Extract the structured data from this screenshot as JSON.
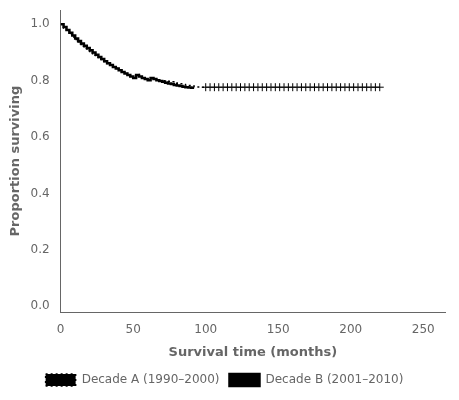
{
  "chart_data": {
    "type": "line",
    "title": "",
    "xlabel": "Survival time (months)",
    "ylabel": "Proportion surviving",
    "xlim": [
      0,
      265
    ],
    "ylim": [
      -0.02,
      1.05
    ],
    "xticks": [
      0,
      50,
      100,
      150,
      200,
      250
    ],
    "yticks": [
      {
        "value": 0.0,
        "label": "0.0"
      },
      0.2,
      0.4,
      0.6,
      0.8,
      {
        "value": 1.0,
        "label": "1.0"
      }
    ],
    "grid": false,
    "legend": "bottom",
    "series": [
      {
        "name": "Decade A (1990–2000)",
        "color": "#000000",
        "line_style": "dotted",
        "marker": "cross",
        "x": [
          0,
          2,
          4,
          6,
          8,
          10,
          12,
          14,
          16,
          18,
          20,
          22,
          24,
          26,
          28,
          30,
          32,
          34,
          36,
          38,
          40,
          42,
          44,
          46,
          48,
          50,
          52,
          54,
          56,
          58,
          60,
          62,
          64,
          66,
          68,
          70,
          72,
          74,
          76,
          78,
          80,
          82,
          84,
          86,
          88,
          90,
          92,
          94,
          96,
          98,
          100
        ],
        "values": [
          1.0,
          0.986,
          0.975,
          0.965,
          0.955,
          0.946,
          0.937,
          0.928,
          0.92,
          0.912,
          0.904,
          0.896,
          0.889,
          0.882,
          0.875,
          0.868,
          0.861,
          0.855,
          0.849,
          0.843,
          0.837,
          0.831,
          0.826,
          0.82,
          0.815,
          0.81,
          0.822,
          0.817,
          0.812,
          0.807,
          0.803,
          0.81,
          0.806,
          0.802,
          0.8,
          0.8,
          0.8,
          0.798,
          0.796,
          0.793,
          0.791,
          0.789,
          0.787,
          0.785,
          0.783,
          0.781,
          0.779,
          0.778,
          0.777,
          0.777,
          0.777
        ],
        "censor_x": [
          100,
          103,
          106,
          109,
          112,
          115,
          118,
          121,
          124,
          127,
          130,
          133,
          136,
          139,
          142,
          145,
          148,
          151,
          154,
          157,
          160,
          163,
          166,
          169,
          172,
          175,
          178,
          181,
          184,
          187,
          190,
          193,
          196,
          199,
          202,
          205,
          208,
          211,
          214,
          217,
          220
        ],
        "censor_values": [
          0.777,
          0.777,
          0.777,
          0.777,
          0.777,
          0.777,
          0.777,
          0.777,
          0.777,
          0.777,
          0.777,
          0.777,
          0.777,
          0.777,
          0.777,
          0.777,
          0.777,
          0.777,
          0.777,
          0.777,
          0.777,
          0.777,
          0.777,
          0.777,
          0.777,
          0.777,
          0.777,
          0.777,
          0.777,
          0.777,
          0.777,
          0.777,
          0.777,
          0.777,
          0.777,
          0.777,
          0.777,
          0.777,
          0.777,
          0.777,
          0.777
        ]
      },
      {
        "name": "Decade B (2001–2010)",
        "color": "#000000",
        "line_style": "solid",
        "x": [
          0,
          2,
          4,
          6,
          8,
          10,
          12,
          14,
          16,
          18,
          20,
          22,
          24,
          26,
          28,
          30,
          32,
          34,
          36,
          38,
          40,
          42,
          44,
          46,
          48,
          50,
          52,
          54,
          56,
          58,
          60,
          62,
          64,
          66,
          68,
          70,
          72,
          74,
          76,
          78,
          80,
          82,
          84,
          86,
          88,
          90,
          92
        ],
        "values": [
          1.0,
          0.99,
          0.98,
          0.97,
          0.96,
          0.95,
          0.941,
          0.932,
          0.924,
          0.916,
          0.908,
          0.9,
          0.892,
          0.884,
          0.877,
          0.869,
          0.862,
          0.856,
          0.849,
          0.843,
          0.837,
          0.831,
          0.826,
          0.82,
          0.815,
          0.81,
          0.82,
          0.815,
          0.81,
          0.806,
          0.802,
          0.81,
          0.806,
          0.802,
          0.799,
          0.796,
          0.793,
          0.79,
          0.788,
          0.785,
          0.783,
          0.781,
          0.779,
          0.777,
          0.776,
          0.775,
          0.775
        ]
      }
    ]
  }
}
